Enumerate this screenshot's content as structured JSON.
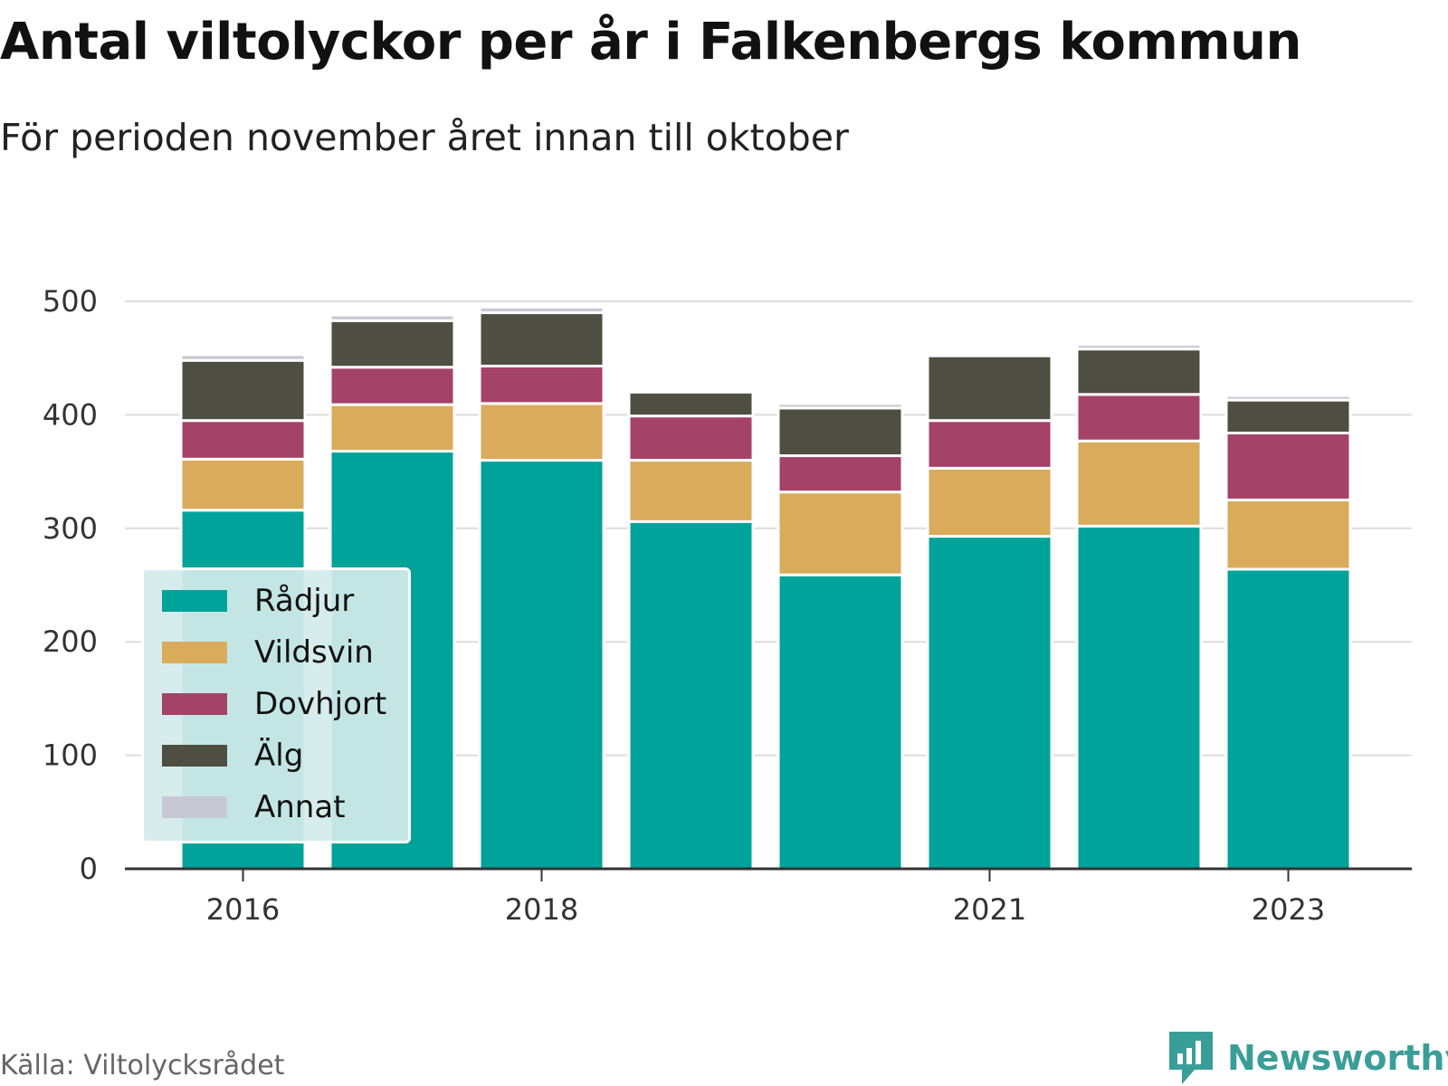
{
  "title": "Antal viltolyckor per år i Falkenbergs kommun",
  "subtitle": "För perioden november året innan till oktober",
  "source": "Källa: Viltolycksrådet",
  "brand": {
    "name": "Newsworthy",
    "icon": "newsworthy-logo-icon",
    "color": "#3a9e98"
  },
  "chart_data": {
    "type": "bar",
    "stacked": true,
    "categories": [
      "2016",
      "2017",
      "2018",
      "2019",
      "2020",
      "2021",
      "2022",
      "2023"
    ],
    "x_tick_labels": [
      "2016",
      "2018",
      "2021",
      "2023"
    ],
    "ylim": [
      0,
      500
    ],
    "y_ticks": [
      0,
      100,
      200,
      300,
      400,
      500
    ],
    "grid": true,
    "legend_position": "bottom-left",
    "series": [
      {
        "name": "Rådjur",
        "color": "#00a39a",
        "values": [
          316,
          368,
          360,
          306,
          259,
          293,
          302,
          264
        ]
      },
      {
        "name": "Vildsvin",
        "color": "#d9ab5a",
        "values": [
          45,
          41,
          50,
          54,
          73,
          60,
          75,
          61
        ]
      },
      {
        "name": "Dovhjort",
        "color": "#a54268",
        "values": [
          34,
          33,
          33,
          39,
          32,
          42,
          41,
          59
        ]
      },
      {
        "name": "Älg",
        "color": "#4e4f42",
        "values": [
          53,
          41,
          47,
          21,
          42,
          57,
          40,
          29
        ]
      },
      {
        "name": "Annat",
        "color": "#c8c8d4",
        "values": [
          5,
          5,
          5,
          0,
          4,
          0,
          4,
          4
        ]
      }
    ]
  }
}
